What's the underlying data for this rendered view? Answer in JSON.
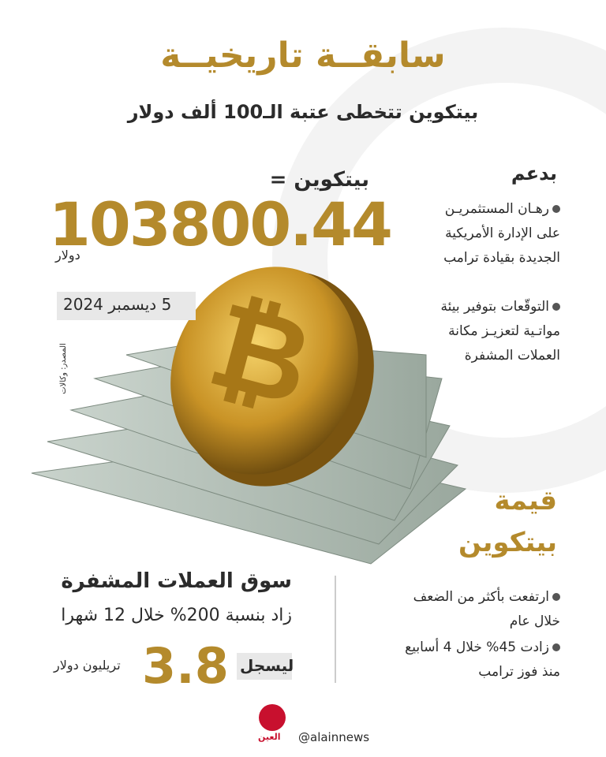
{
  "header": {
    "title": "سابقــة تاريخيــة",
    "subtitle": "بيتكوين تتخطى عتبة الـ100 ألف دولار"
  },
  "price": {
    "label": "بيتكوين =",
    "value": "103800.44",
    "unit": "دولار",
    "date": "5 ديسمبر 2024",
    "source": "المصدر: وكالات"
  },
  "support": {
    "heading": "بدعم",
    "items": [
      [
        "رهـان المستثمريـن",
        "على الإدارة الأمريكية",
        "الجديدة بقيادة ترامب"
      ],
      [
        "التوقّعات بتوفير بيئة",
        "مواتـية لتعزيـز مكانة",
        "العملات المشفرة"
      ]
    ]
  },
  "value_section": {
    "heading": [
      "قيمة",
      "بيتكوين"
    ],
    "items": [
      [
        "ارتفعت بأكثر من الضعف",
        "خلال عام"
      ],
      [
        "زادت 45% خلال 4 أسابيع",
        "منذ فوز ترامب"
      ]
    ]
  },
  "market": {
    "title": "سوق العملات المشفرة",
    "line": "زاد بنسبة 200% خلال 12 شهرا",
    "record_label": "ليسجل",
    "record_value": "3.8",
    "record_unit": "تريليون دولار"
  },
  "footer": {
    "logo": "العين",
    "handle": "@alainnews"
  }
}
